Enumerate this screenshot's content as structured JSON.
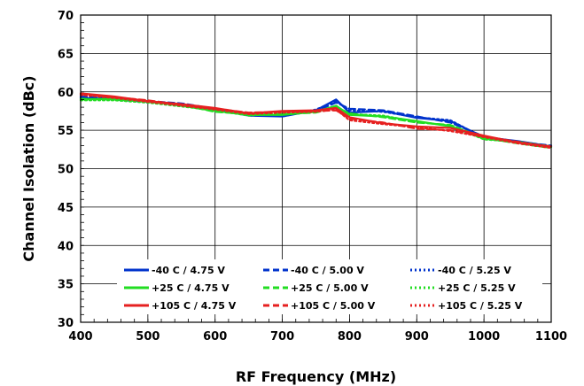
{
  "chart_data": {
    "type": "line",
    "title": "",
    "xlabel": "RF Frequency (MHz)",
    "ylabel": "Channel Isolation (dBc)",
    "xlim": [
      400,
      1100
    ],
    "ylim": [
      30,
      70
    ],
    "xticks": [
      400,
      500,
      600,
      700,
      800,
      900,
      1000,
      1100
    ],
    "yticks": [
      30,
      35,
      40,
      45,
      50,
      55,
      60,
      65,
      70
    ],
    "grid": true,
    "legend_position": "bottom",
    "x": [
      400,
      450,
      500,
      550,
      600,
      650,
      700,
      750,
      780,
      800,
      850,
      900,
      950,
      1000,
      1050,
      1100
    ],
    "series": [
      {
        "name": "-40 C  / 4.75 V",
        "color": "#0033cc",
        "dash": "solid",
        "values": [
          59.2,
          59.0,
          58.7,
          58.4,
          57.7,
          56.9,
          56.8,
          57.6,
          59.0,
          57.3,
          57.5,
          56.6,
          56.2,
          54.1,
          53.6,
          52.9
        ]
      },
      {
        "name": "-40 C  / 5.00 V",
        "color": "#0033cc",
        "dash": "dashed",
        "values": [
          59.4,
          59.1,
          58.8,
          58.5,
          57.8,
          57.0,
          56.9,
          57.5,
          58.6,
          57.8,
          57.6,
          56.8,
          56.0,
          54.2,
          53.5,
          53.0
        ]
      },
      {
        "name": "-40 C  / 5.25 V",
        "color": "#0033cc",
        "dash": "dotted",
        "values": [
          59.3,
          59.0,
          58.6,
          58.4,
          57.6,
          57.1,
          56.8,
          57.7,
          58.8,
          57.6,
          57.4,
          56.7,
          56.3,
          54.0,
          53.4,
          52.8
        ]
      },
      {
        "name": "+25 C  / 4.75 V",
        "color": "#22dd22",
        "dash": "solid",
        "values": [
          59.0,
          59.1,
          58.8,
          58.2,
          57.5,
          57.0,
          57.0,
          57.4,
          58.2,
          57.0,
          56.8,
          56.2,
          55.5,
          53.9,
          53.4,
          52.8
        ]
      },
      {
        "name": "+25 C  / 5.00 V",
        "color": "#22dd22",
        "dash": "dashed",
        "values": [
          59.1,
          59.0,
          58.7,
          58.3,
          57.4,
          57.1,
          57.1,
          57.3,
          58.0,
          57.2,
          56.7,
          56.0,
          55.7,
          54.0,
          53.3,
          52.7
        ]
      },
      {
        "name": "+25 C  / 5.25 V",
        "color": "#22dd22",
        "dash": "dotted",
        "values": [
          58.9,
          58.9,
          58.6,
          58.1,
          57.6,
          56.9,
          57.2,
          57.5,
          58.1,
          57.1,
          56.9,
          56.1,
          55.6,
          53.8,
          53.5,
          52.9
        ]
      },
      {
        "name": "+105 C  / 4.75 V",
        "color": "#e62020",
        "dash": "solid",
        "values": [
          59.8,
          59.4,
          58.8,
          58.4,
          57.9,
          57.2,
          57.5,
          57.6,
          57.9,
          56.7,
          55.9,
          55.5,
          55.3,
          54.3,
          53.4,
          52.9
        ]
      },
      {
        "name": "+105 C  / 5.00 V",
        "color": "#e62020",
        "dash": "dashed",
        "values": [
          59.7,
          59.3,
          58.9,
          58.3,
          57.8,
          57.3,
          57.4,
          57.5,
          57.6,
          56.5,
          56.0,
          55.2,
          55.0,
          54.2,
          53.5,
          52.8
        ]
      },
      {
        "name": "+105 C  / 5.25 V",
        "color": "#e62020",
        "dash": "dotted",
        "values": [
          59.6,
          59.2,
          58.7,
          58.2,
          57.7,
          57.1,
          57.3,
          57.4,
          57.7,
          56.3,
          55.8,
          55.4,
          54.9,
          54.1,
          53.3,
          52.7
        ]
      }
    ]
  }
}
